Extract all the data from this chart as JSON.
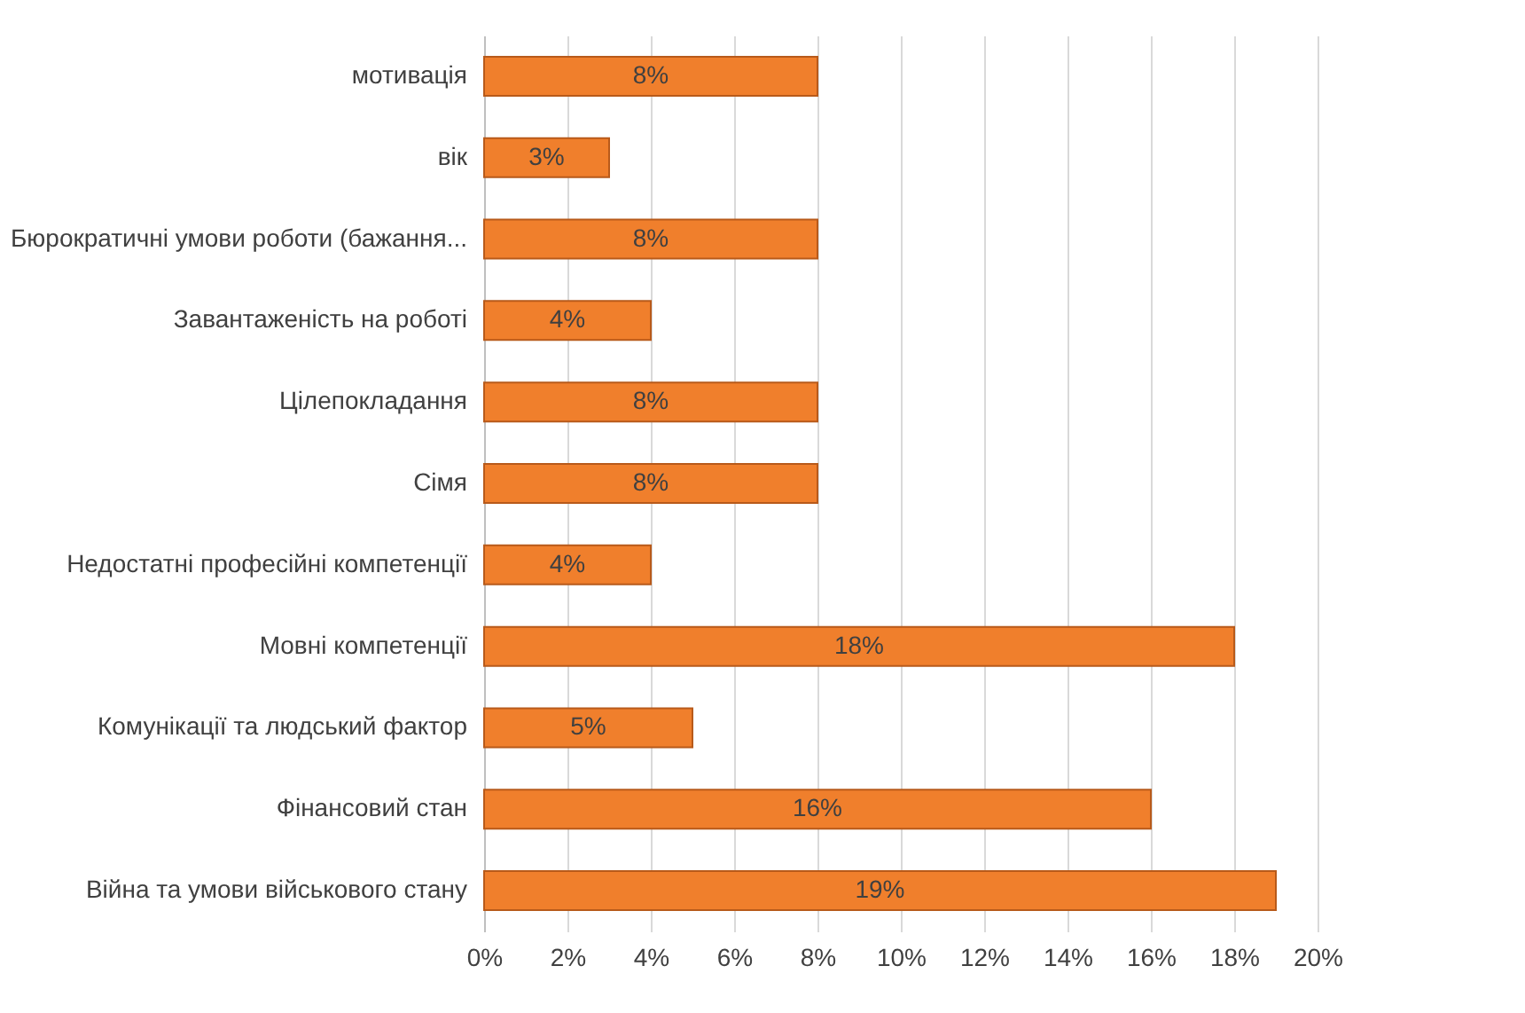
{
  "chart_data": {
    "type": "bar",
    "orientation": "horizontal",
    "categories": [
      "мотивація",
      "вік",
      "Бюрократичні умови роботи (бажання...",
      "Завантаженість на роботі",
      "Цілепокладання",
      "Сімя",
      "Недостатні професійні компетенції",
      "Мовні компетенції",
      "Комунікації та людський фактор",
      "Фінансовий стан",
      "Війна та умови військового стану"
    ],
    "values": [
      8,
      3,
      8,
      4,
      8,
      8,
      4,
      18,
      5,
      16,
      19
    ],
    "value_labels": [
      "8%",
      "3%",
      "8%",
      "4%",
      "8%",
      "8%",
      "4%",
      "18%",
      "5%",
      "16%",
      "19%"
    ],
    "color": "#f07f2c",
    "xlim": [
      0,
      20
    ],
    "xticks": [
      {
        "value": 0,
        "label": "0%"
      },
      {
        "value": 2,
        "label": "2%"
      },
      {
        "value": 4,
        "label": "4%"
      },
      {
        "value": 6,
        "label": "6%"
      },
      {
        "value": 8,
        "label": "8%"
      },
      {
        "value": 10,
        "label": "10%"
      },
      {
        "value": 12,
        "label": "12%"
      },
      {
        "value": 14,
        "label": "14%"
      },
      {
        "value": 16,
        "label": "16%"
      },
      {
        "value": 18,
        "label": "18%"
      },
      {
        "value": 20,
        "label": "20%"
      }
    ],
    "grid": "x"
  }
}
